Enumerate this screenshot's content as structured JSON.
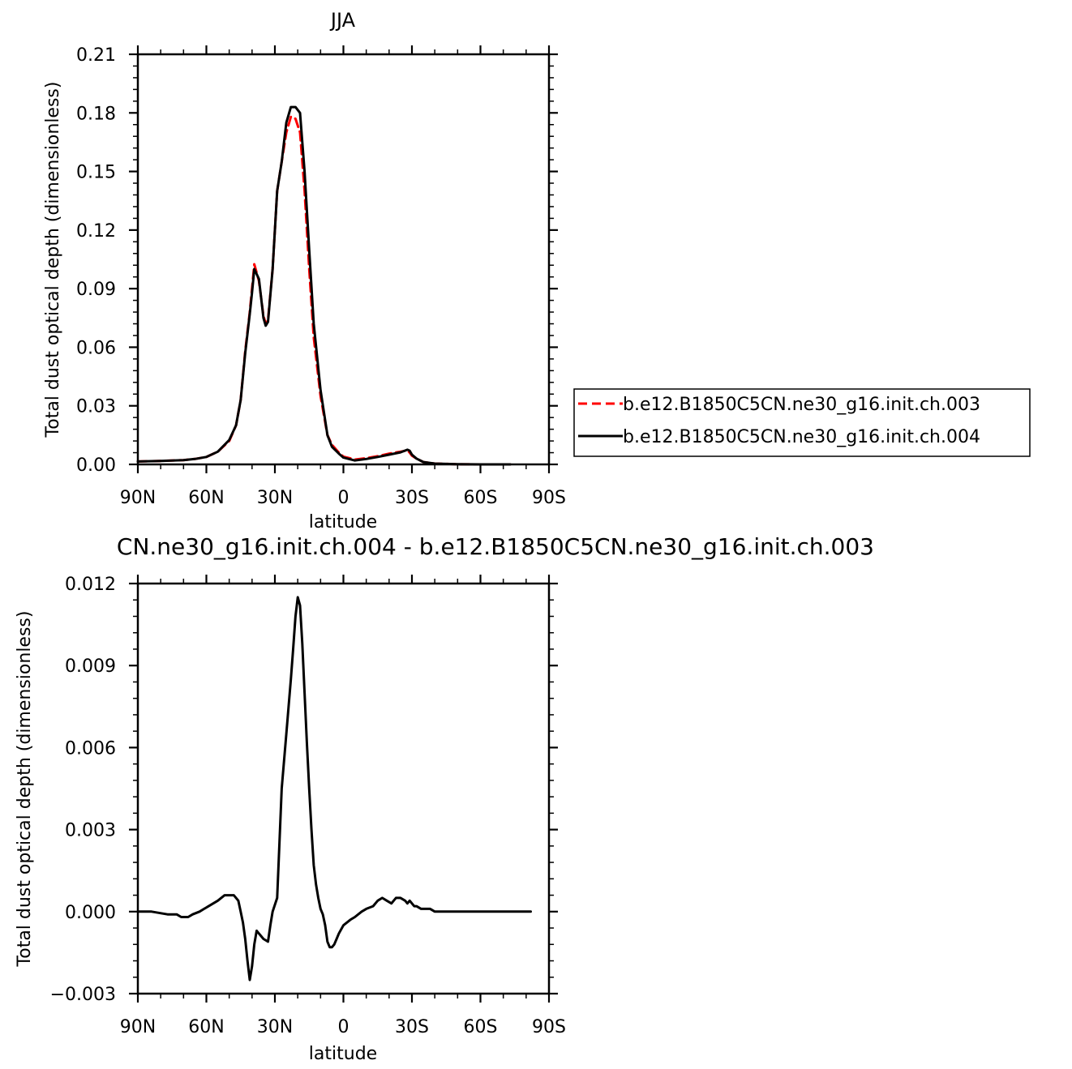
{
  "chart_data": [
    {
      "type": "line",
      "title": "JJA",
      "xlabel": "latitude",
      "ylabel": "Total dust optical depth (dimensionless)",
      "xlim": [
        90,
        -90
      ],
      "ylim": [
        0,
        0.21
      ],
      "x_ticks": [
        90,
        60,
        30,
        0,
        -30,
        -60,
        -90
      ],
      "x_tick_labels": [
        "90N",
        "60N",
        "30N",
        "0",
        "30S",
        "60S",
        "90S"
      ],
      "y_ticks": [
        0,
        0.03,
        0.06,
        0.09,
        0.12,
        0.15,
        0.18,
        0.21
      ],
      "y_tick_labels": [
        "0.00",
        "0.03",
        "0.06",
        "0.09",
        "0.12",
        "0.15",
        "0.18",
        "0.21"
      ],
      "legend_position": "right",
      "series": [
        {
          "name": "b.e12.B1850C5CN.ne30_g16.init.ch.003",
          "color": "#ff0000",
          "dash": true,
          "x": [
            90,
            80,
            70,
            65,
            60,
            55,
            50,
            47,
            45,
            43,
            41,
            40,
            39,
            37,
            35,
            34,
            33,
            31,
            29,
            27,
            25,
            23,
            21,
            19,
            17,
            15,
            13,
            10,
            7,
            5,
            2,
            0,
            -5,
            -10,
            -15,
            -20,
            -25,
            -28,
            -29,
            -30,
            -32,
            -35,
            -40,
            -50,
            -60,
            -70,
            -73
          ],
          "y": [
            0.0015,
            0.0018,
            0.0022,
            0.0028,
            0.0038,
            0.0065,
            0.012,
            0.02,
            0.033,
            0.058,
            0.078,
            0.09,
            0.1025,
            0.094,
            0.076,
            0.072,
            0.074,
            0.1,
            0.14,
            0.155,
            0.17,
            0.178,
            0.177,
            0.17,
            0.14,
            0.1,
            0.065,
            0.035,
            0.015,
            0.01,
            0.006,
            0.004,
            0.0025,
            0.0032,
            0.0042,
            0.0055,
            0.0065,
            0.0072,
            0.006,
            0.0045,
            0.003,
            0.0012,
            0.0004,
            0.0001,
            0.0,
            0.0,
            0.0
          ]
        },
        {
          "name": "b.e12.B1850C5CN.ne30_g16.init.ch.004",
          "color": "#000000",
          "dash": false,
          "x": [
            90,
            80,
            70,
            65,
            60,
            55,
            50,
            47,
            45,
            43,
            41,
            40,
            39,
            37,
            35,
            34,
            33,
            31,
            29,
            27,
            25,
            23,
            21,
            19,
            17,
            15,
            13,
            10,
            7,
            5,
            2,
            0,
            -5,
            -10,
            -15,
            -20,
            -25,
            -28,
            -29,
            -30,
            -32,
            -35,
            -40,
            -50,
            -60,
            -70,
            -73
          ],
          "y": [
            0.0015,
            0.0018,
            0.0022,
            0.0028,
            0.0038,
            0.0065,
            0.0125,
            0.02,
            0.033,
            0.057,
            0.077,
            0.088,
            0.1,
            0.095,
            0.075,
            0.071,
            0.073,
            0.1,
            0.14,
            0.155,
            0.175,
            0.183,
            0.183,
            0.18,
            0.15,
            0.11,
            0.072,
            0.038,
            0.015,
            0.009,
            0.0055,
            0.0035,
            0.002,
            0.0028,
            0.0038,
            0.005,
            0.0062,
            0.0075,
            0.007,
            0.005,
            0.003,
            0.0012,
            0.0004,
            0.0001,
            0.0,
            0.0,
            0.0
          ]
        }
      ]
    },
    {
      "type": "line",
      "title": "CN.ne30_g16.init.ch.004 - b.e12.B1850C5CN.ne30_g16.init.ch.003",
      "xlabel": "latitude",
      "ylabel": "Total dust optical depth (dimensionless)",
      "xlim": [
        90,
        -90
      ],
      "ylim": [
        -0.003,
        0.012
      ],
      "x_ticks": [
        90,
        60,
        30,
        0,
        -30,
        -60,
        -90
      ],
      "x_tick_labels": [
        "90N",
        "60N",
        "30N",
        "0",
        "30S",
        "60S",
        "90S"
      ],
      "y_ticks": [
        -0.003,
        0,
        0.003,
        0.006,
        0.009,
        0.012
      ],
      "y_tick_labels": [
        "-0.003",
        "0.000",
        "0.003",
        "0.006",
        "0.009",
        "0.012"
      ],
      "series": [
        {
          "color": "#000000",
          "dash": false,
          "x": [
            90,
            84,
            77,
            73,
            71,
            68,
            66,
            63,
            61,
            59,
            55,
            52,
            50,
            48,
            46,
            45,
            44,
            43,
            42,
            41,
            40,
            39,
            38,
            37,
            35,
            33,
            32,
            31,
            29,
            28,
            27,
            25,
            24,
            23,
            22,
            21,
            20,
            19,
            18,
            17,
            16,
            15,
            14,
            13,
            12,
            11,
            10,
            9,
            8,
            7,
            6,
            5,
            4,
            3,
            2,
            0,
            -3,
            -5,
            -8,
            -10,
            -13,
            -15,
            -17,
            -19,
            -21,
            -23,
            -25,
            -27,
            -28,
            -29,
            -30,
            -31,
            -32,
            -34,
            -35,
            -37,
            -38,
            -40,
            -43,
            -50,
            -60,
            -70,
            -82
          ],
          "y": [
            0.0,
            0.0,
            -0.0001,
            -0.0001,
            -0.0002,
            -0.0002,
            -0.0001,
            0.0,
            0.0001,
            0.0002,
            0.0004,
            0.0006,
            0.0006,
            0.0006,
            0.0004,
            0.0,
            -0.0004,
            -0.001,
            -0.0018,
            -0.0025,
            -0.002,
            -0.0012,
            -0.0007,
            -0.0008,
            -0.001,
            -0.0011,
            -0.0005,
            0.0,
            0.0005,
            0.0025,
            0.0045,
            0.0065,
            0.0075,
            0.0085,
            0.0096,
            0.0108,
            0.0115,
            0.0112,
            0.0098,
            0.008,
            0.0062,
            0.0045,
            0.003,
            0.0017,
            0.001,
            0.0005,
            0.0001,
            -0.0001,
            -0.0005,
            -0.0011,
            -0.0013,
            -0.0013,
            -0.0012,
            -0.001,
            -0.0008,
            -0.0005,
            -0.0003,
            -0.0002,
            0.0,
            0.0001,
            0.0002,
            0.0004,
            0.0005,
            0.0004,
            0.0003,
            0.0005,
            0.0005,
            0.0004,
            0.0003,
            0.0004,
            0.0003,
            0.0002,
            0.0002,
            0.0001,
            0.0001,
            0.0001,
            0.0001,
            0.0,
            0.0,
            0.0,
            0.0,
            0.0,
            0.0
          ]
        }
      ]
    }
  ]
}
